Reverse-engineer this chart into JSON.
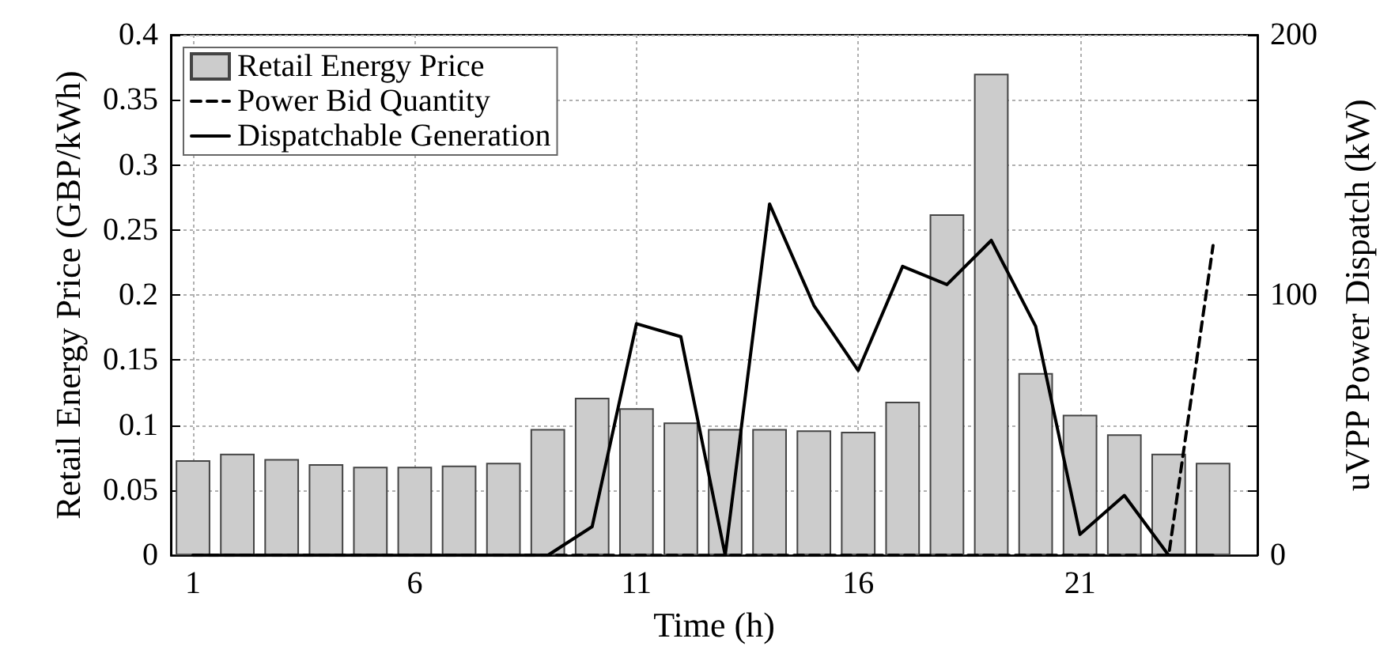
{
  "chart_data": {
    "type": "bar",
    "xlabel": "Time (h)",
    "ylabel": "Retail Energy Price (GBP/kWh)",
    "y2label": "uVPP Power Dispatch (kW)",
    "x": [
      1,
      2,
      3,
      4,
      5,
      6,
      7,
      8,
      9,
      10,
      11,
      12,
      13,
      14,
      15,
      16,
      17,
      18,
      19,
      20,
      21,
      22,
      23,
      24
    ],
    "series": [
      {
        "name": "Retail Energy Price",
        "color": "#cccccc",
        "values": [
          0.073,
          0.078,
          0.074,
          0.07,
          0.068,
          0.068,
          0.069,
          0.071,
          0.097,
          0.121,
          0.113,
          0.102,
          0.097,
          0.097,
          0.096,
          0.095,
          0.118,
          0.262,
          0.37,
          0.14,
          0.108,
          0.093,
          0.078,
          0.071
        ]
      },
      {
        "name": "Power Bid Quantity",
        "type": "line",
        "axis": "y2",
        "color": "#000000",
        "line_style": "dashed",
        "values": [
          0,
          0,
          0,
          0,
          0,
          0,
          0,
          0,
          0,
          0,
          0,
          0,
          0,
          0,
          0,
          0,
          0,
          0,
          0,
          0,
          0,
          0,
          0,
          119
        ]
      },
      {
        "name": "Dispatchable Generation",
        "type": "line",
        "axis": "y2",
        "color": "#000000",
        "line_style": "solid",
        "values": [
          0,
          0,
          0,
          0,
          0,
          0,
          0,
          0,
          0,
          11,
          89,
          84,
          0,
          135,
          96,
          71,
          111,
          104,
          121,
          88,
          8,
          23,
          0,
          0
        ]
      }
    ],
    "xlim": [
      0.5,
      25
    ],
    "xticks": [
      1,
      6,
      11,
      16,
      21
    ],
    "ylim": [
      0,
      0.4
    ],
    "yticks": [
      0,
      0.05,
      0.1,
      0.15,
      0.2,
      0.25,
      0.3,
      0.35,
      0.4
    ],
    "y2lim": [
      0,
      200
    ],
    "y2ticks": [
      0,
      {
        "value": 25,
        "label": null
      },
      {
        "value": 50,
        "label": null
      },
      {
        "value": 75,
        "label": null
      },
      100,
      {
        "value": 125,
        "label": null
      },
      {
        "value": 150,
        "label": null
      },
      {
        "value": 175,
        "label": null
      },
      200
    ],
    "grid": true,
    "legend": "top left",
    "marker": "none"
  }
}
